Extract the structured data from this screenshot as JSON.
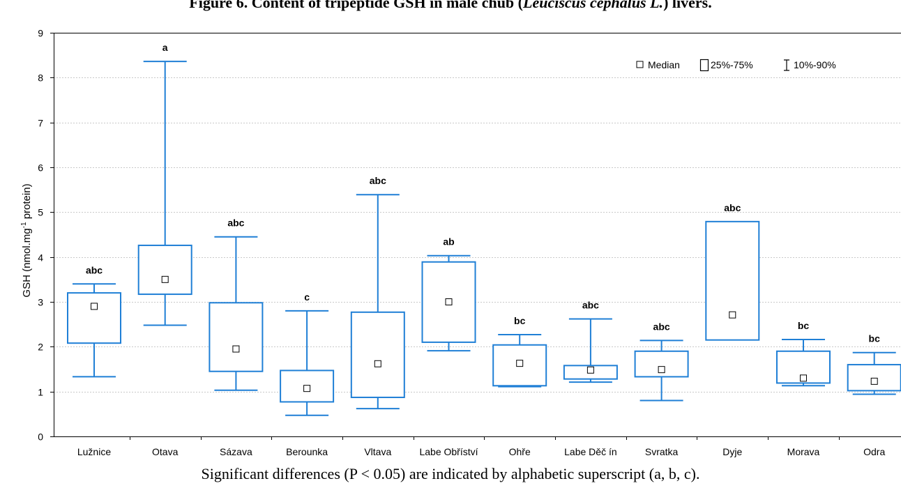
{
  "figure": {
    "title_prefix": "Figure 6. Content of tripeptide GSH in male chub (",
    "species": "Leuciscus cephalus L.",
    "title_suffix": ") livers.",
    "caption": "Significant differences (P < 0.05) are indicated by alphabetic superscript (a, b, c)."
  },
  "chart_data": {
    "type": "box",
    "ylabel_main": "GSH (nmol.mg",
    "ylabel_sup": "-1",
    "ylabel_tail": " protein)",
    "xlabel": "",
    "ylim": [
      0,
      9
    ],
    "yticks": [
      0,
      1,
      2,
      3,
      4,
      5,
      6,
      7,
      8,
      9
    ],
    "grid": "horizontal dotted",
    "legend_position": "top-right",
    "legend": {
      "median": "Median",
      "box": "25%-75%",
      "whisker": "10%-90%"
    },
    "colors": {
      "box": "#1f7fd6",
      "grid": "#c8c8c8",
      "axis": "#000000"
    },
    "categories": [
      "Lužnice",
      "Otava",
      "Sázava",
      "Berounka",
      "Vltava",
      "Labe Obříství",
      "Ohře",
      "Labe Děč ín",
      "Svratka",
      "Dyje",
      "Morava",
      "Odra"
    ],
    "boxes": [
      {
        "median": 2.9,
        "q1": 2.08,
        "q3": 3.2,
        "p10": 1.33,
        "p90": 3.4,
        "sig": "abc"
      },
      {
        "median": 3.5,
        "q1": 3.17,
        "q3": 4.26,
        "p10": 2.48,
        "p90": 8.36,
        "sig": "a"
      },
      {
        "median": 1.95,
        "q1": 1.45,
        "q3": 2.98,
        "p10": 1.03,
        "p90": 4.45,
        "sig": "abc"
      },
      {
        "median": 1.07,
        "q1": 0.77,
        "q3": 1.47,
        "p10": 0.47,
        "p90": 2.8,
        "sig": "c"
      },
      {
        "median": 1.62,
        "q1": 0.87,
        "q3": 2.77,
        "p10": 0.62,
        "p90": 5.39,
        "sig": "abc"
      },
      {
        "median": 3.0,
        "q1": 2.1,
        "q3": 3.89,
        "p10": 1.91,
        "p90": 4.03,
        "sig": "ab"
      },
      {
        "median": 1.63,
        "q1": 1.13,
        "q3": 2.04,
        "p10": 1.11,
        "p90": 2.27,
        "sig": "bc"
      },
      {
        "median": 1.48,
        "q1": 1.28,
        "q3": 1.58,
        "p10": 1.21,
        "p90": 2.62,
        "sig": "abc"
      },
      {
        "median": 1.49,
        "q1": 1.33,
        "q3": 1.9,
        "p10": 0.8,
        "p90": 2.14,
        "sig": "abc"
      },
      {
        "median": 2.71,
        "q1": 2.15,
        "q3": 4.79,
        "p10": 2.15,
        "p90": 4.79,
        "sig": "abc"
      },
      {
        "median": 1.3,
        "q1": 1.19,
        "q3": 1.9,
        "p10": 1.13,
        "p90": 2.16,
        "sig": "bc"
      },
      {
        "median": 1.23,
        "q1": 1.02,
        "q3": 1.6,
        "p10": 0.94,
        "p90": 1.87,
        "sig": "bc"
      }
    ]
  }
}
